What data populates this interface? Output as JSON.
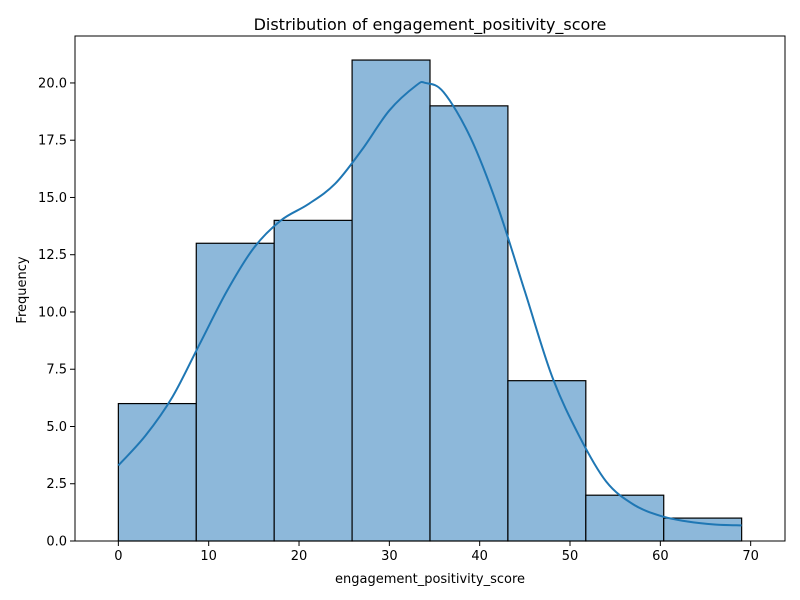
{
  "chart_data": {
    "type": "bar",
    "subtype": "histogram-with-kde",
    "title": "Distribution of engagement_positivity_score",
    "xlabel": "engagement_positivity_score",
    "ylabel": "Frequency",
    "xlim": [
      -4.8,
      73.8
    ],
    "ylim": [
      0,
      22.05
    ],
    "x_ticks": [
      0,
      10,
      20,
      30,
      40,
      50,
      60,
      70
    ],
    "y_ticks": [
      0.0,
      2.5,
      5.0,
      7.5,
      10.0,
      12.5,
      15.0,
      17.5,
      20.0
    ],
    "bins": [
      {
        "start": 0.0,
        "end": 8.625,
        "count": 6
      },
      {
        "start": 8.625,
        "end": 17.25,
        "count": 13
      },
      {
        "start": 17.25,
        "end": 25.875,
        "count": 14
      },
      {
        "start": 25.875,
        "end": 34.5,
        "count": 21
      },
      {
        "start": 34.5,
        "end": 43.125,
        "count": 19
      },
      {
        "start": 43.125,
        "end": 51.75,
        "count": 7
      },
      {
        "start": 51.75,
        "end": 60.375,
        "count": 2
      },
      {
        "start": 60.375,
        "end": 69.0,
        "count": 1
      }
    ],
    "kde": {
      "x": [
        0,
        3,
        6,
        9,
        12,
        15,
        18,
        21,
        24,
        27,
        30,
        33,
        34,
        36,
        39,
        42,
        45,
        48,
        51,
        54,
        57,
        60,
        63,
        66,
        69
      ],
      "y": [
        3.3,
        4.6,
        6.3,
        8.6,
        10.9,
        12.8,
        14.0,
        14.7,
        15.6,
        17.1,
        18.8,
        19.9,
        20.0,
        19.6,
        17.6,
        14.6,
        10.9,
        7.2,
        4.6,
        2.6,
        1.6,
        1.1,
        0.85,
        0.72,
        0.68
      ]
    },
    "grid": false,
    "colors": {
      "bar_fill": "#8db8da",
      "bar_edge": "#000000",
      "kde_line": "#1f77b4"
    }
  }
}
